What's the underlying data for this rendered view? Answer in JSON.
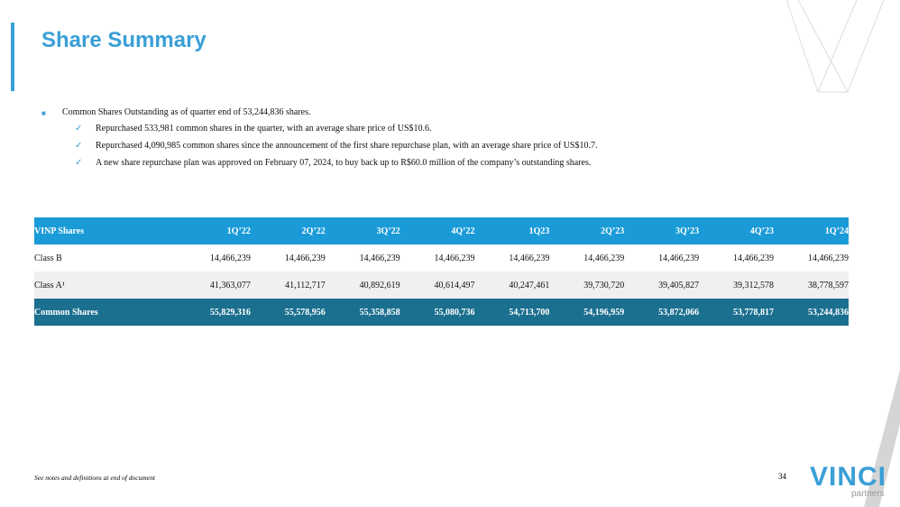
{
  "header": {
    "title": "Share Summary"
  },
  "bullets": {
    "main": "Common Shares Outstanding as of quarter end of 53,244,836 shares.",
    "items": [
      "Repurchased 533,981 common shares in the quarter, with an average share price of US$10.6.",
      "Repurchased 4,090,985 common shares since the announcement of the first share repurchase plan, with an average share price of US$10.7.",
      "A new share repurchase plan was approved on February 07, 2024, to buy back up to R$60.0 million of the company’s outstanding shares."
    ]
  },
  "table": {
    "header": [
      "VINP Shares",
      "1Q’22",
      "2Q’22",
      "3Q’22",
      "4Q’22",
      "1Q23",
      "2Q’23",
      "3Q’23",
      "4Q’23",
      "1Q’24"
    ],
    "rows": [
      [
        "Class B",
        "14,466,239",
        "14,466,239",
        "14,466,239",
        "14,466,239",
        "14,466,239",
        "14,466,239",
        "14,466,239",
        "14,466,239",
        "14,466,239"
      ],
      [
        "Class A¹",
        "41,363,077",
        "41,112,717",
        "40,892,619",
        "40,614,497",
        "40,247,461",
        "39,730,720",
        "39,405,827",
        "39,312,578",
        "38,778,597"
      ],
      [
        "Common Shares",
        "55,829,316",
        "55,578,956",
        "55,358,858",
        "55,080,736",
        "54,713,700",
        "54,196,959",
        "53,872,066",
        "53,778,817",
        "53,244,836"
      ]
    ]
  },
  "footer": {
    "note": "See notes and definitions at end of document",
    "page": "34",
    "logo": "VINCI",
    "logo_sub": "partners"
  }
}
